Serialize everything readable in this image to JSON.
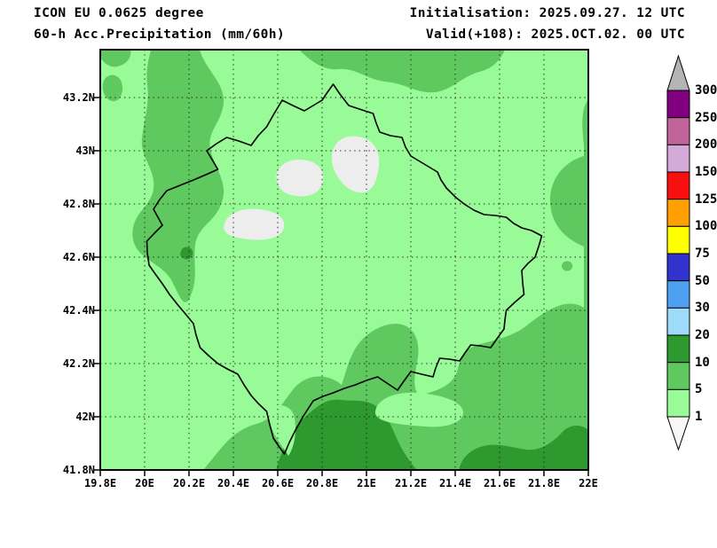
{
  "header": {
    "model_line": "ICON EU 0.0625 degree",
    "param_line": "60-h Acc.Precipitation (mm/60h)",
    "init_line": "Initialisation: 2025.09.27. 12 UTC",
    "valid_line": "Valid(+108): 2025.OCT.02. 00 UTC"
  },
  "map": {
    "lat_labels": [
      "43.2N",
      "43N",
      "42.8N",
      "42.6N",
      "42.4N",
      "42.2N",
      "42N",
      "41.8N"
    ],
    "lon_labels": [
      "19.8E",
      "20E",
      "20.2E",
      "20.4E",
      "20.6E",
      "20.8E",
      "21E",
      "21.2E",
      "21.4E",
      "21.6E",
      "21.8E",
      "22E"
    ],
    "lat_range": [
      41.8,
      43.38
    ],
    "lon_range": [
      19.8,
      22.0
    ],
    "grid_interval_deg": 0.2
  },
  "colorbar": {
    "levels": [
      "300",
      "250",
      "200",
      "150",
      "125",
      "100",
      "75",
      "50",
      "30",
      "20",
      "10",
      "5",
      "1"
    ],
    "band_colors": [
      "#b4b4b4",
      "#800080",
      "#c0649b",
      "#d4aad8",
      "#f81010",
      "#ffa000",
      "#ffff00",
      "#3232cd",
      "#4da0f0",
      "#9edbfa",
      "#2e992e",
      "#5fc85f",
      "#98fb98",
      "#f8f8f8"
    ],
    "units": "mm/60h"
  },
  "colors": {
    "shade_light": "#98fb98",
    "shade_medium": "#5fc85f",
    "shade_dark": "#2e992e",
    "shade_trace": "#ededed",
    "grid": "#222222",
    "country_border": "#000000",
    "frame": "#000000"
  }
}
